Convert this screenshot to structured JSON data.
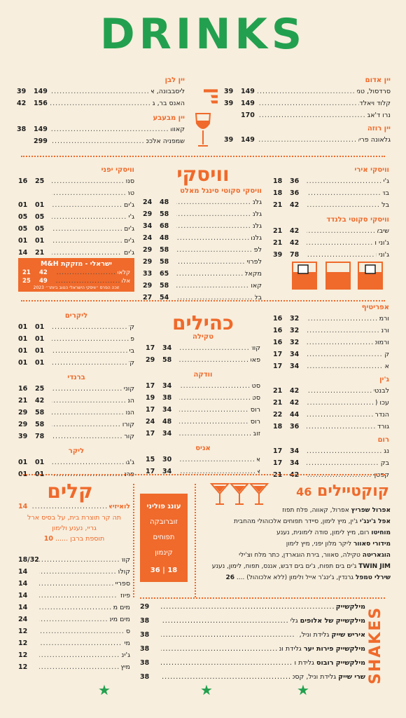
{
  "title": "DRINKS",
  "wine": {
    "section_title": "יין",
    "red": {
      "label": "יין אדום",
      "items": [
        {
          "name": "סרדסול, טמפרניו, ספרד (נבארה)",
          "p1": "149",
          "p2": "39"
        },
        {
          "name": "קלוד ויאלד, סירהו מרלו, צרפת",
          "p1": "149",
          "p2": "39"
        },
        {
          "name": "נרו ד'אבולה, סיציליה",
          "p1": "170",
          "p2": ""
        }
      ]
    },
    "rose": {
      "label": "יין רוזה",
      "items": [
        {
          "name": "גלאונה פרימיטיבו מרלו, איטליה",
          "p1": "149",
          "p2": "39"
        }
      ]
    },
    "white": {
      "label": "יין לבן",
      "items": [
        {
          "name": "ליסבבונה, ארינטו וסמיון, פורטוגל",
          "p1": "149",
          "p2": "39"
        },
        {
          "name": "האנס בר, גוורצטרמינר, גרמניה",
          "p1": "156",
          "p2": "42"
        }
      ]
    },
    "sparkling": {
      "label": "יין מבעבע",
      "items": [
        {
          "name": "קאווה ברוט",
          "p1": "149",
          "p2": "38"
        },
        {
          "name": "שמפניה אלכסנדר בונה גרנד דרבר ברוט",
          "p1": "299",
          "p2": ""
        }
      ]
    }
  },
  "whisky": {
    "section_title": "וויסקי",
    "irish": {
      "label": "וויסקי אירי",
      "items": [
        {
          "name": "ג'יימסון",
          "p1": "36",
          "p2": "18"
        },
        {
          "name": "בושמילס",
          "p1": "36",
          "p2": "18"
        },
        {
          "name": "בלאק בוש",
          "p1": "42",
          "p2": "21"
        }
      ]
    },
    "blended": {
      "label": "וויסקי סקוטי בלנדד",
      "items": [
        {
          "name": "שיבאס ריגאל 12",
          "p1": "42",
          "p2": "21"
        },
        {
          "name": "ג'וני ווקר בלאק לייבל",
          "p1": "42",
          "p2": "21"
        },
        {
          "name": "ג'וני ווקר בלו לייבל",
          "p1": "78",
          "p2": "39"
        }
      ]
    },
    "single_malt": {
      "label": "וויסקי סקוטי סינגל מאלט",
      "items": [
        {
          "name": "גלנפידיך 12",
          "p1": "48",
          "p2": "24"
        },
        {
          "name": "גלנפידיך 15",
          "p1": "58",
          "p2": "29"
        },
        {
          "name": "גלנפידיך 18",
          "p1": "68",
          "p2": "34"
        },
        {
          "name": "גלנמורנג'י 10",
          "p1": "48",
          "p2": "24"
        },
        {
          "name": "לפרויג 10",
          "p1": "58",
          "p2": "29"
        },
        {
          "name": "לפרויג קוורטר קאסק",
          "p1": "58",
          "p2": "29"
        },
        {
          "name": "מקאלן 12 דאבל קאסק",
          "p1": "65",
          "p2": "33"
        },
        {
          "name": "קאול איילה 12",
          "p1": "58",
          "p2": "29"
        },
        {
          "name": "בלווני 12",
          "p1": "54",
          "p2": "27"
        }
      ]
    },
    "japanese": {
      "label": "וויסקי יפני",
      "items": [
        {
          "name": "סנטורי טוקי",
          "p1": "25",
          "p2": "16"
        },
        {
          "name": "טרופיקל",
          "p1": "",
          "p2": ""
        },
        {
          "name": "ג'ים בים בורבון",
          "p1": "01",
          "p2": "01"
        },
        {
          "name": "ג'ים בים",
          "p1": "05",
          "p2": "05"
        },
        {
          "name": "ג'ים בים שיפון",
          "p1": "05",
          "p2": "05"
        },
        {
          "name": "ג'ים בים שחור",
          "p1": "01",
          "p2": "01"
        },
        {
          "name": "ג'ים בים 12 שנה",
          "p1": "21",
          "p2": "14"
        }
      ]
    },
    "israeli_box": {
      "label": "ישראלי - מזקקת M&H",
      "items": [
        {
          "name": "קלאסיק סינגל מאלט",
          "p1": "42",
          "p2": "21"
        },
        {
          "name": "אלמנטס שרי",
          "p1": "49",
          "p2": "25"
        }
      ],
      "note": "זוכה הפרס ״וויסקי הישראלי הטוב ביותר״ 2023"
    }
  },
  "spirits": {
    "section_title": "כהילים",
    "aperitif": {
      "label": "אפריטיף",
      "items": [
        {
          "name": "ורמוט ביאנקו",
          "p1": "32",
          "p2": "16"
        },
        {
          "name": "ורמוט רוסו",
          "p1": "32",
          "p2": "16"
        },
        {
          "name": "ורמוט אקסטרה דריי",
          "p1": "32",
          "p2": "16"
        },
        {
          "name": "קמפרי",
          "p1": "34",
          "p2": "17"
        },
        {
          "name": "אפרול",
          "p1": "34",
          "p2": "17"
        }
      ]
    },
    "gin": {
      "label": "ג'ין",
      "items": [
        {
          "name": "לבנטין (M&H), ישראל",
          "p1": "42",
          "p2": "21"
        },
        {
          "name": "עכו (יוליוס), ישראל",
          "p1": "42",
          "p2": "21"
        },
        {
          "name": "הנדריק'ס, סקוטלנד",
          "p1": "44",
          "p2": "22"
        },
        {
          "name": "גורדונ'ס, אנגליה",
          "p1": "36",
          "p2": "18"
        }
      ]
    },
    "rum": {
      "label": "רום",
      "items": [
        {
          "name": "נגריטה",
          "p1": "34",
          "p2": "17"
        },
        {
          "name": "בקארדי לבן",
          "p1": "34",
          "p2": "17"
        },
        {
          "name": "קפטן מורגן ספייסד גולד",
          "p1": "42",
          "p2": "21"
        }
      ]
    },
    "tequila": {
      "label": "טקילה",
      "items": [
        {
          "name": "קווארבו גולד",
          "p1": "34",
          "p2": "17"
        },
        {
          "name": "פאטרון אנייחו",
          "p1": "58",
          "p2": "29"
        }
      ]
    },
    "vodka": {
      "label": "וודקה",
      "items": [
        {
          "name": "סטולי אדום",
          "p1": "34",
          "p2": "17"
        },
        {
          "name": "סטולי גולד",
          "p1": "38",
          "p2": "19"
        },
        {
          "name": "רוסקי סטנדרט",
          "p1": "34",
          "p2": "17"
        },
        {
          "name": "רוסקי פלטינום",
          "p1": "48",
          "p2": "24"
        },
        {
          "name": "זוברובקה",
          "p1": "34",
          "p2": "17"
        }
      ]
    },
    "anise": {
      "label": "אניס",
      "items": [
        {
          "name": "ארק",
          "p1": "30",
          "p2": "15"
        },
        {
          "name": "אוזו",
          "p1": "34",
          "p2": "17"
        }
      ]
    },
    "liqueur": {
      "label": "ליקרים",
      "items": [
        {
          "name": "קלואה",
          "p1": "01",
          "p2": "01"
        },
        {
          "name": "פידז",
          "p1": "01",
          "p2": "01"
        },
        {
          "name": "בייליס",
          "p1": "01",
          "p2": "01"
        },
        {
          "name": "קלואה",
          "p1": "01",
          "p2": "01"
        }
      ]
    },
    "brandy": {
      "label": "ברנדי",
      "items": [
        {
          "name": "קוניאק VSOP",
          "p1": "25",
          "p2": "16"
        },
        {
          "name": "הנסי VS",
          "p1": "42",
          "p2": "21"
        },
        {
          "name": "הנסי VSOP",
          "p1": "58",
          "p2": "29"
        },
        {
          "name": "קורוואזייה VSOP",
          "p1": "58",
          "p2": "29"
        },
        {
          "name": "קורוואזייה XO",
          "p1": "78",
          "p2": "39"
        }
      ]
    },
    "other": {
      "label": "ליקר",
      "items": [
        {
          "name": "ג'גרמייסטר",
          "p1": "01",
          "p2": "01"
        },
        {
          "name": "פרנה-ברנקה",
          "p1": "01",
          "p2": "01"
        }
      ]
    }
  },
  "soft": {
    "section_title": "קלים",
    "highlight": "לואיזיאנה וירג'ין אייס טי",
    "highlight_price": "14",
    "highlight_desc_1": "תה קר תוצרת בית, על בסיס ארל",
    "highlight_desc_2": "גריי, נענע ולימון",
    "highlight_add": "תוספת ברבן",
    "highlight_add_price": "10",
    "items": [
      {
        "name": "קוואס 0%",
        "p": "18/32"
      },
      {
        "name": "קולה/קולה זירו",
        "p": "14"
      },
      {
        "name": "ספרייט/ספרייט זירו",
        "p": "14"
      },
      {
        "name": "פיוז טי אפרסק",
        "p": "14"
      },
      {
        "name": "מים מינרלים 500 מ\"ל",
        "p": "14"
      },
      {
        "name": "מים מינרלים מוגזים 750 מ\"ל",
        "p": "24"
      },
      {
        "name": "סודה",
        "p": "12"
      },
      {
        "name": "מי טוניק",
        "p": "12"
      },
      {
        "name": "ג'ינג'ר אייל",
        "p": "12"
      },
      {
        "name": "מיץ תפוזים",
        "p": "12"
      }
    ]
  },
  "special_box": {
    "items": [
      "עונג פוליני",
      "זוברובקה",
      "תפוחים",
      "קינמון"
    ],
    "price": "18 | 36"
  },
  "cocktails": {
    "section_title": "קוקטיילים",
    "price": "46",
    "items": [
      {
        "name": "אפרול שפריץ",
        "desc": "אפרול, קאווה, פלח תפוז"
      },
      {
        "name": "אפל ג'ינג'י",
        "desc": "ג'ין, מיץ לימון, סיידר תפוחים אלכוהולי מהחבית"
      },
      {
        "name": "מוחיטו",
        "desc": "רום, מיץ לימון, סודה לימונית, נענע"
      },
      {
        "name": "מידורי סאוור",
        "desc": "ליקר מלון יפני, מיץ לימון"
      },
      {
        "name": "הוגאריטה",
        "desc": "טקילה, סאוור, בירת הוגארדן, כתר מלח וצ'ילי"
      },
      {
        "name": "TWIN JIM",
        "desc": "ג'ים בים תפוח, ג'ים בים דבש, אננס, תפוח, לימון, נענע"
      },
      {
        "name": "שירלי טמפל",
        "desc": "גרנדין, ג'ינג'ר אייל ולימון (ללא אלכוהול)",
        "p": "26"
      }
    ]
  },
  "shakes": {
    "section_title": "SHAKES",
    "items": [
      {
        "name": "מילקשייק וניל",
        "desc": "",
        "p": "29"
      },
      {
        "name": "מילקשייק של אלופים",
        "desc": "גלידת וניל, גינס, קצפת, קקאו",
        "p": "38"
      },
      {
        "name": "איריש שייק",
        "desc": "גלידת וניל, בייליס, אספרסו, קצפת",
        "p": "38"
      },
      {
        "name": "מילקשייק פירות יער",
        "desc": "גלידת וניל, ליפמנס פרוטס, קצפת, פירות יער",
        "p": "38"
      },
      {
        "name": "מילקשייק רובוס",
        "desc": "גלידת וניל, קסטיל רובוס וקצפת",
        "p": "38"
      },
      {
        "name": "שרי שייק",
        "desc": "גלידת וניל, קסטיל רוז', קצפת, פירות יער",
        "p": "38"
      }
    ]
  },
  "colors": {
    "orange": "#ef6a2b",
    "green": "#23a04f",
    "background": "#f7eedd"
  }
}
